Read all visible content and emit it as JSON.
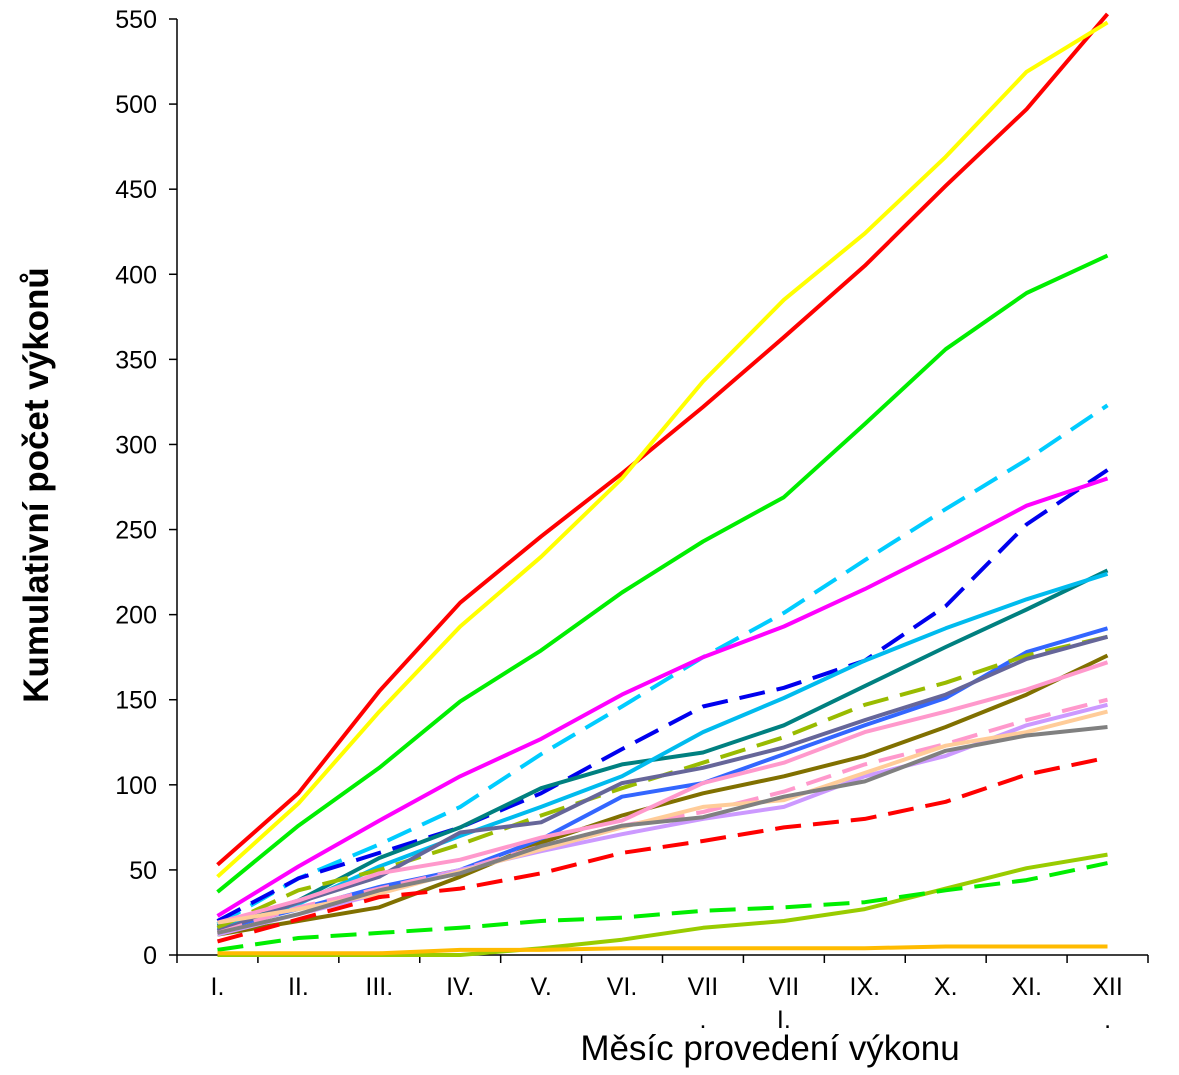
{
  "chart_data": {
    "type": "line",
    "title": "",
    "xlabel": "Měsíc provedení výkonu",
    "ylabel": "Kumulativní počet výkonů",
    "categories": [
      "I.",
      "II.",
      "III.",
      "IV.",
      "V.",
      "VI.",
      "VII\n.",
      "VII\nI.",
      "IX.",
      "X.",
      "XI.",
      "XII\n."
    ],
    "ylim": [
      0,
      550
    ],
    "yticks": [
      0,
      50,
      100,
      150,
      200,
      250,
      300,
      350,
      400,
      450,
      500,
      550
    ],
    "grid": false,
    "legend": "none",
    "series": [
      {
        "color": "#ff0000",
        "dash": false,
        "values": [
          53,
          95,
          155,
          207,
          246,
          283,
          322,
          363,
          405,
          452,
          497,
          553
        ]
      },
      {
        "color": "#ffff00",
        "dash": false,
        "values": [
          46,
          89,
          143,
          193,
          234,
          280,
          337,
          385,
          424,
          469,
          519,
          548
        ]
      },
      {
        "color": "#00ee00",
        "dash": false,
        "values": [
          37,
          76,
          110,
          149,
          179,
          213,
          243,
          269,
          312,
          356,
          389,
          411
        ]
      },
      {
        "color": "#00ccff",
        "dash": true,
        "values": [
          18,
          45,
          65,
          87,
          118,
          146,
          175,
          201,
          232,
          262,
          291,
          323
        ]
      },
      {
        "color": "#0000ee",
        "dash": true,
        "values": [
          20,
          45,
          60,
          75,
          95,
          121,
          146,
          157,
          173,
          205,
          253,
          285
        ]
      },
      {
        "color": "#ff00ff",
        "dash": false,
        "values": [
          23,
          52,
          79,
          105,
          127,
          153,
          175,
          193,
          215,
          239,
          264,
          280
        ]
      },
      {
        "color": "#008080",
        "dash": false,
        "values": [
          17,
          32,
          57,
          75,
          98,
          112,
          119,
          135,
          158,
          181,
          203,
          226
        ]
      },
      {
        "color": "#00bbee",
        "dash": false,
        "values": [
          15,
          30,
          52,
          70,
          87,
          105,
          131,
          151,
          173,
          192,
          209,
          224
        ]
      },
      {
        "color": "#3366ff",
        "dash": false,
        "values": [
          15,
          27,
          40,
          50,
          68,
          93,
          101,
          118,
          135,
          151,
          178,
          192
        ]
      },
      {
        "color": "#99bb00",
        "dash": true,
        "values": [
          16,
          38,
          50,
          65,
          82,
          98,
          113,
          128,
          147,
          160,
          176,
          187
        ]
      },
      {
        "color": "#666699",
        "dash": false,
        "values": [
          14,
          31,
          46,
          72,
          78,
          101,
          110,
          122,
          138,
          153,
          174,
          187
        ]
      },
      {
        "color": "#807000",
        "dash": false,
        "values": [
          12,
          20,
          28,
          46,
          66,
          82,
          95,
          105,
          117,
          134,
          153,
          176
        ]
      },
      {
        "color": "#ff99cc",
        "dash": false,
        "values": [
          19,
          32,
          48,
          56,
          69,
          79,
          101,
          113,
          131,
          143,
          156,
          172
        ]
      },
      {
        "color": "#ff99cc",
        "dash": true,
        "values": [
          13,
          28,
          39,
          50,
          64,
          76,
          84,
          96,
          112,
          124,
          138,
          150
        ]
      },
      {
        "color": "#cc99ff",
        "dash": false,
        "values": [
          12,
          24,
          36,
          50,
          61,
          71,
          80,
          87,
          105,
          117,
          135,
          147
        ]
      },
      {
        "color": "#ffcc99",
        "dash": false,
        "values": [
          19,
          27,
          36,
          49,
          62,
          75,
          87,
          91,
          107,
          123,
          131,
          143
        ]
      },
      {
        "color": "#808080",
        "dash": false,
        "values": [
          13,
          24,
          38,
          48,
          64,
          76,
          81,
          93,
          102,
          120,
          129,
          134
        ]
      },
      {
        "color": "#ff0000",
        "dash": true,
        "values": [
          8,
          21,
          34,
          39,
          48,
          60,
          67,
          75,
          80,
          90,
          106,
          116
        ]
      },
      {
        "color": "#99cc00",
        "dash": false,
        "values": [
          0,
          0,
          0,
          0,
          4,
          9,
          16,
          20,
          27,
          39,
          51,
          59
        ]
      },
      {
        "color": "#00ee00",
        "dash": true,
        "values": [
          3,
          10,
          13,
          16,
          20,
          22,
          26,
          28,
          31,
          38,
          44,
          54
        ]
      },
      {
        "color": "#ffbb00",
        "dash": false,
        "values": [
          1,
          1,
          1,
          3,
          3,
          4,
          4,
          4,
          4,
          5,
          5,
          5
        ]
      }
    ]
  }
}
